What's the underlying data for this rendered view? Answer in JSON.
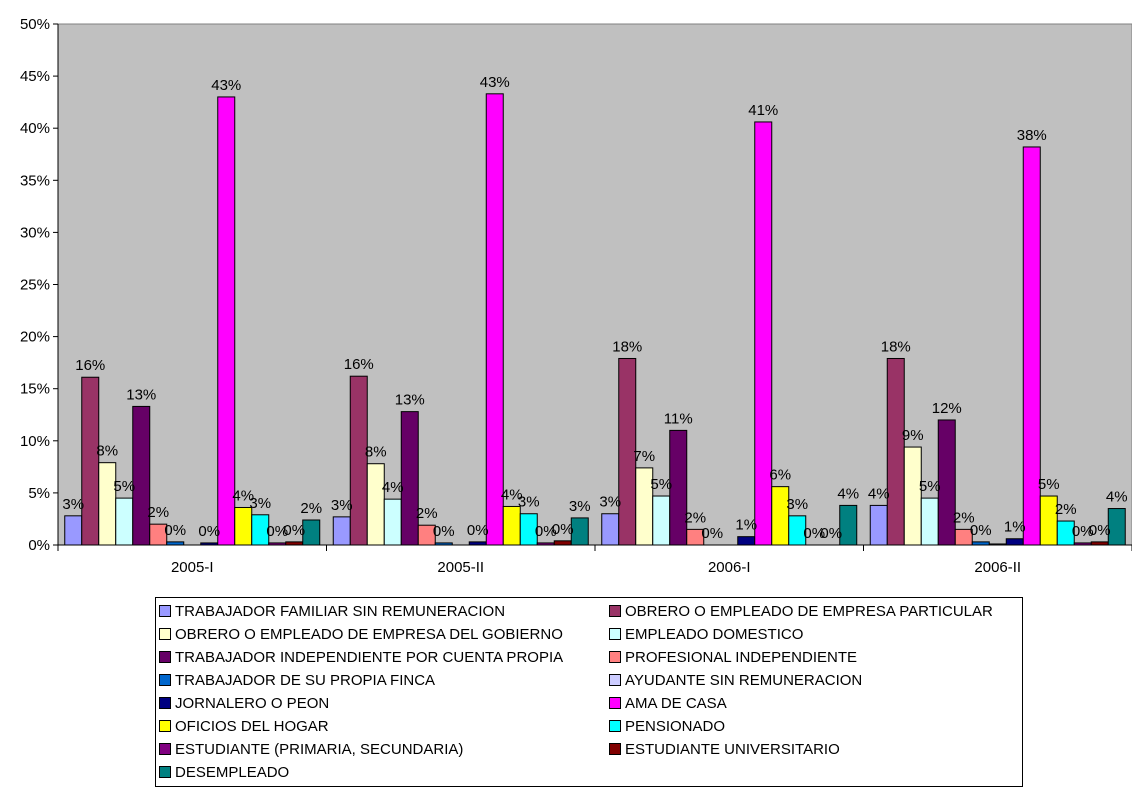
{
  "chart_data": {
    "type": "bar",
    "categories": [
      "2005-I",
      "2005-II",
      "2006-I",
      "2006-II"
    ],
    "ylim": [
      0,
      0.5
    ],
    "yticks": [
      "0%",
      "5%",
      "10%",
      "15%",
      "20%",
      "25%",
      "30%",
      "35%",
      "40%",
      "45%",
      "50%"
    ],
    "grid": false,
    "legend_position": "bottom",
    "series": [
      {
        "name": "TRABAJADOR FAMILIAR SIN REMUNERACION",
        "color": "#9999ff",
        "values": [
          0.028,
          0.027,
          0.03,
          0.038
        ],
        "labels": [
          "3%",
          "3%",
          "3%",
          "4%"
        ]
      },
      {
        "name": "OBRERO O EMPLEADO DE EMPRESA PARTICULAR",
        "color": "#993366",
        "values": [
          0.161,
          0.162,
          0.179,
          0.179
        ],
        "labels": [
          "16%",
          "16%",
          "18%",
          "18%"
        ]
      },
      {
        "name": "OBRERO O EMPLEADO DE EMPRESA DEL GOBIERNO",
        "color": "#ffffcc",
        "values": [
          0.079,
          0.078,
          0.074,
          0.094
        ],
        "labels": [
          "8%",
          "8%",
          "7%",
          "9%"
        ]
      },
      {
        "name": "EMPLEADO DOMESTICO",
        "color": "#ccffff",
        "values": [
          0.045,
          0.044,
          0.047,
          0.045
        ],
        "labels": [
          "5%",
          "4%",
          "5%",
          "5%"
        ]
      },
      {
        "name": "TRABAJADOR INDEPENDIENTE POR CUENTA PROPIA",
        "color": "#660066",
        "values": [
          0.133,
          0.128,
          0.11,
          0.12
        ],
        "labels": [
          "13%",
          "13%",
          "11%",
          "12%"
        ]
      },
      {
        "name": "PROFESIONAL INDEPENDIENTE",
        "color": "#ff8080",
        "values": [
          0.02,
          0.019,
          0.015,
          0.015
        ],
        "labels": [
          "2%",
          "2%",
          "2%",
          "2%"
        ]
      },
      {
        "name": "TRABAJADOR DE SU PROPIA FINCA",
        "color": "#0066cc",
        "values": [
          0.003,
          0.002,
          0.0,
          0.003
        ],
        "labels": [
          "0%",
          "0%",
          "0%",
          "0%"
        ]
      },
      {
        "name": "AYUDANTE SIN REMUNERACION",
        "color": "#ccccff",
        "values": [
          0.0,
          0.0,
          0.0,
          0.001
        ],
        "labels": [
          "",
          "",
          "",
          ""
        ]
      },
      {
        "name": "JORNALERO O PEON",
        "color": "#000080",
        "values": [
          0.002,
          0.003,
          0.008,
          0.006
        ],
        "labels": [
          "0%",
          "0%",
          "1%",
          "1%"
        ]
      },
      {
        "name": "AMA DE CASA",
        "color": "#ff00ff",
        "values": [
          0.43,
          0.433,
          0.406,
          0.382
        ],
        "labels": [
          "43%",
          "43%",
          "41%",
          "38%"
        ]
      },
      {
        "name": "OFICIOS DEL HOGAR",
        "color": "#ffff00",
        "values": [
          0.036,
          0.037,
          0.056,
          0.047
        ],
        "labels": [
          "4%",
          "4%",
          "6%",
          "5%"
        ]
      },
      {
        "name": "PENSIONADO",
        "color": "#00ffff",
        "values": [
          0.029,
          0.03,
          0.028,
          0.023
        ],
        "labels": [
          "3%",
          "3%",
          "3%",
          "2%"
        ]
      },
      {
        "name": "ESTUDIANTE (PRIMARIA, SECUNDARIA)",
        "color": "#800080",
        "values": [
          0.002,
          0.002,
          0.0,
          0.002
        ],
        "labels": [
          "0%",
          "0%",
          "0%",
          "0%"
        ]
      },
      {
        "name": "ESTUDIANTE UNIVERSITARIO",
        "color": "#800000",
        "values": [
          0.003,
          0.004,
          0.0,
          0.003
        ],
        "labels": [
          "0%",
          "0%",
          "0%",
          "0%"
        ]
      },
      {
        "name": "DESEMPLEADO",
        "color": "#008080",
        "values": [
          0.024,
          0.026,
          0.038,
          0.035
        ],
        "labels": [
          "2%",
          "3%",
          "4%",
          "4%"
        ]
      }
    ]
  }
}
